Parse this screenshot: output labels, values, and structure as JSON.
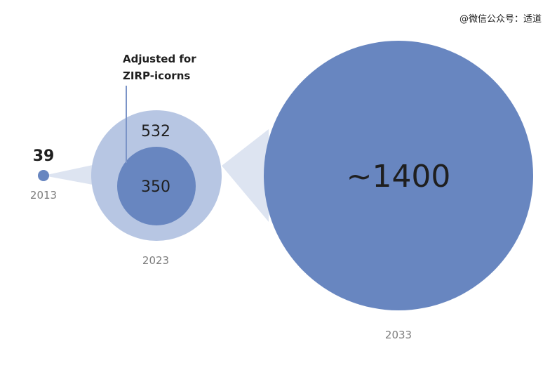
{
  "watermark": "@微信公众号：适道",
  "colors": {
    "bubble_main": "#6886c0",
    "bubble_outer": "#b7c6e3",
    "funnel": "#dde4f1",
    "callout_line": "#7b94c7",
    "value_text": "#1f1f1f",
    "year_text": "#7d7d7d"
  },
  "annotation": [
    "Adjusted for",
    "ZIRP-icorns"
  ],
  "bubbles": [
    {
      "id": "2013",
      "year": "2013",
      "values": [
        "39"
      ]
    },
    {
      "id": "2023",
      "year": "2023",
      "values": [
        "532",
        "350"
      ]
    },
    {
      "id": "2033",
      "year": "2033",
      "values": [
        "~1400"
      ]
    }
  ]
}
